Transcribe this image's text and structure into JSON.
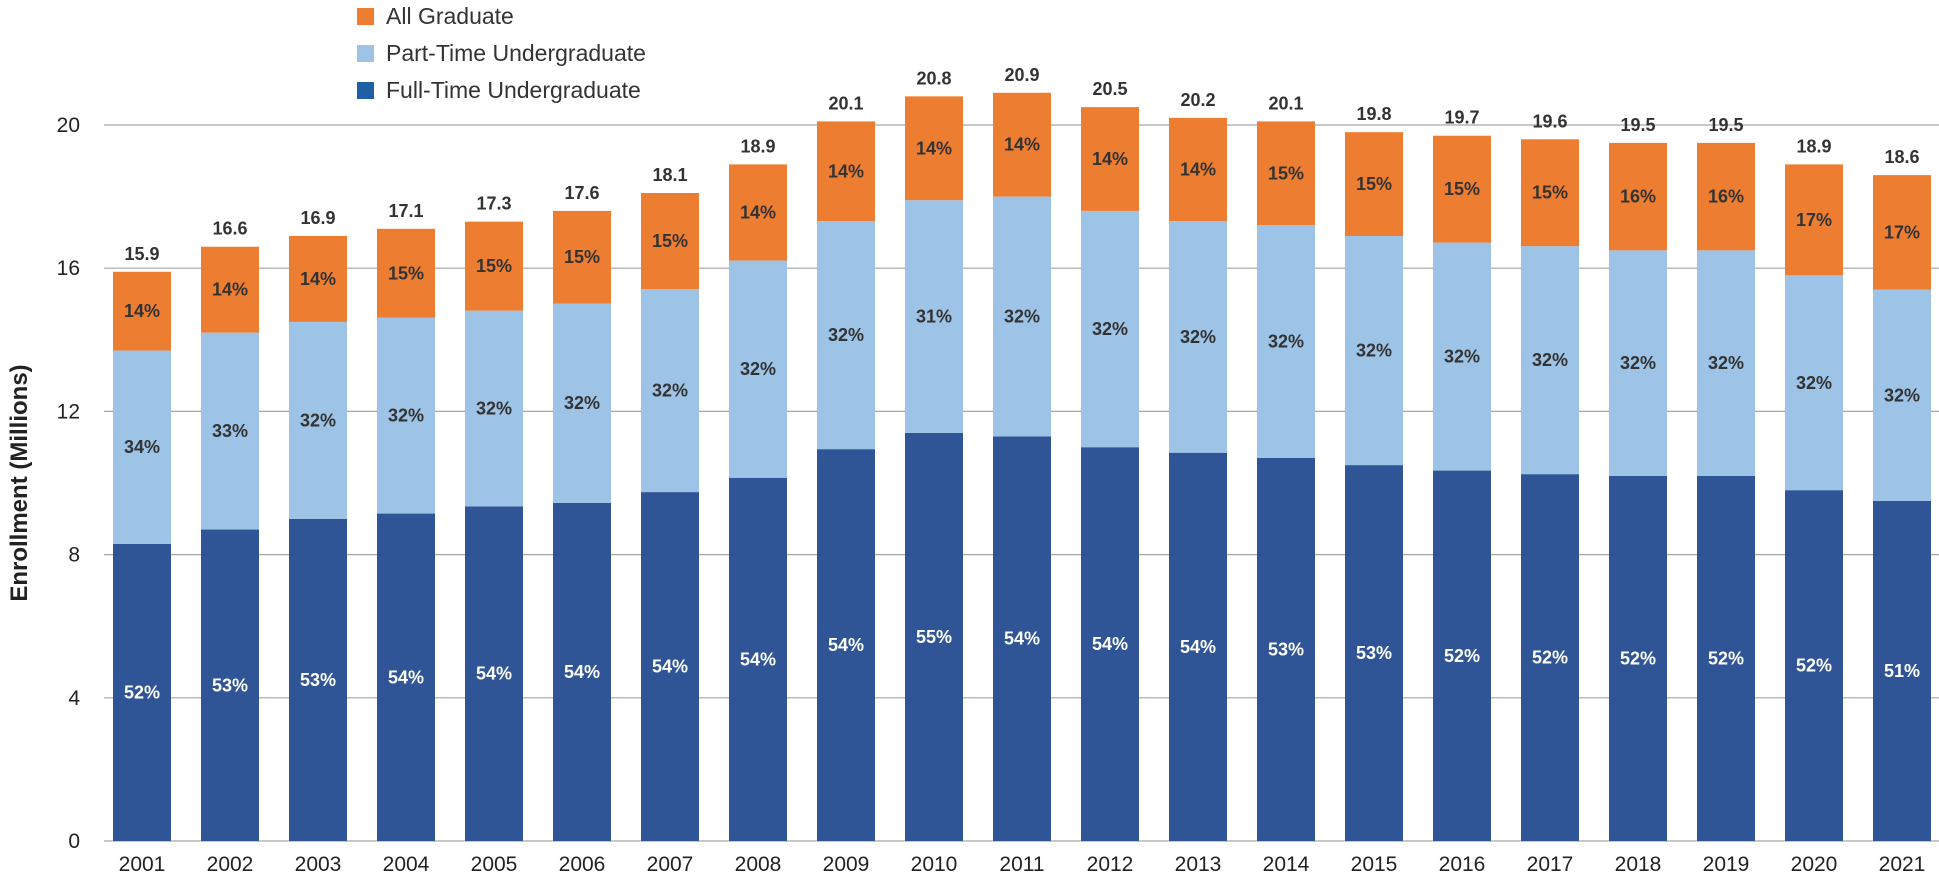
{
  "chart_data": {
    "type": "bar",
    "stacked": true,
    "ylabel": "Enrollment (Millions)",
    "ylim": [
      0,
      20
    ],
    "yticks": [
      0,
      4,
      8,
      12,
      16,
      20
    ],
    "grid": "horizontal",
    "legend_position": "top-left",
    "categories": [
      "2001",
      "2002",
      "2003",
      "2004",
      "2005",
      "2006",
      "2007",
      "2008",
      "2009",
      "2010",
      "2011",
      "2012",
      "2013",
      "2014",
      "2015",
      "2016",
      "2017",
      "2018",
      "2019",
      "2020",
      "2021"
    ],
    "totals": [
      15.9,
      16.6,
      16.9,
      17.1,
      17.3,
      17.6,
      18.1,
      18.9,
      20.1,
      20.8,
      20.9,
      20.5,
      20.2,
      20.1,
      19.8,
      19.7,
      19.6,
      19.5,
      19.5,
      18.9,
      18.6
    ],
    "series": [
      {
        "name": "Full-Time Undergraduate",
        "color": "#2f5597",
        "legend_color": "#1f5fa3",
        "label_color": "#ffffff",
        "values": [
          8.3,
          8.7,
          9.0,
          9.2,
          9.4,
          9.5,
          9.8,
          10.2,
          11.0,
          11.4,
          11.3,
          11.0,
          10.9,
          10.7,
          10.5,
          10.4,
          10.3,
          10.2,
          10.2,
          9.8,
          9.5
        ],
        "percent_labels": [
          "52%",
          "53%",
          "53%",
          "54%",
          "54%",
          "54%",
          "54%",
          "54%",
          "54%",
          "55%",
          "54%",
          "54%",
          "54%",
          "53%",
          "53%",
          "52%",
          "52%",
          "52%",
          "52%",
          "52%",
          "51%"
        ]
      },
      {
        "name": "Part-Time Undergraduate",
        "color": "#9dc3e6",
        "legend_color": "#9dc3e6",
        "label_color": "#333333",
        "values": [
          5.4,
          5.5,
          5.5,
          5.5,
          5.5,
          5.6,
          5.7,
          6.1,
          6.4,
          6.5,
          6.7,
          6.6,
          6.5,
          6.5,
          6.4,
          6.4,
          6.4,
          6.3,
          6.3,
          6.0,
          5.9
        ],
        "percent_labels": [
          "34%",
          "33%",
          "32%",
          "32%",
          "32%",
          "32%",
          "32%",
          "32%",
          "32%",
          "31%",
          "32%",
          "32%",
          "32%",
          "32%",
          "32%",
          "32%",
          "32%",
          "32%",
          "32%",
          "32%",
          "32%"
        ]
      },
      {
        "name": "All Graduate",
        "color": "#ed7d31",
        "legend_color": "#ed7d31",
        "label_color": "#333333",
        "values": [
          2.2,
          2.4,
          2.4,
          2.5,
          2.5,
          2.6,
          2.7,
          2.7,
          2.8,
          2.9,
          2.9,
          2.9,
          2.9,
          2.9,
          2.9,
          3.0,
          3.0,
          3.0,
          3.0,
          3.1,
          3.2
        ],
        "percent_labels": [
          "14%",
          "14%",
          "14%",
          "15%",
          "15%",
          "15%",
          "15%",
          "14%",
          "14%",
          "14%",
          "14%",
          "14%",
          "14%",
          "15%",
          "15%",
          "15%",
          "15%",
          "16%",
          "16%",
          "17%",
          "17%"
        ]
      }
    ],
    "legend_order": [
      "All Graduate",
      "Part-Time Undergraduate",
      "Full-Time Undergraduate"
    ],
    "gridline_color": "#a6a6a6"
  }
}
